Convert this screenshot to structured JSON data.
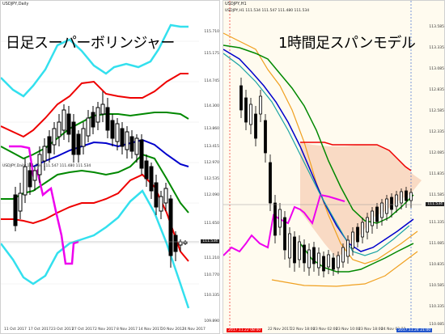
{
  "left": {
    "window_title": "USDJPY,Daily",
    "ohlc_text": "USDJPY,Daily  111.534 111.547 111.480 111.534",
    "caption": "日足スーパーボリンジャー",
    "price_labels": [
      "115.710",
      "115.175",
      "114.745",
      "114.300",
      "113.860",
      "113.415",
      "112.970",
      "112.535",
      "112.090",
      "111.650",
      "111.210",
      "110.770",
      "110.335",
      "109.890"
    ],
    "date_labels": [
      "11 Oct 2017",
      "17 Oct 2017",
      "23 Oct 2017",
      "27 Oct 2017",
      "2 Nov 2017",
      "8 Nov 2017",
      "14 Nov 2017",
      "20 Nov 2017",
      "24 Nov 2017"
    ],
    "current_price": "111.534"
  },
  "right": {
    "window_title": "USDJPY,H1",
    "ohlc_text": "USDJPY,H1  111.534 111.547 111.480 111.534",
    "caption": "1時間足スパンモデル",
    "price_labels": [
      "113.585",
      "113.335",
      "113.085",
      "112.835",
      "112.585",
      "112.335",
      "112.085",
      "111.835",
      "111.585",
      "111.335",
      "111.085",
      "110.835",
      "110.585",
      "110.335",
      "110.085"
    ],
    "date_labels": [
      "22 Nov 2017",
      "22 Nov 18:00",
      "23 Nov 02:00",
      "23 Nov 10:00",
      "23 Nov 18:00",
      "24 Nov 02:00",
      "24 Nov 10:00"
    ],
    "left_marker": "2017.11.22 08:00",
    "right_marker": "2017.11.24 21:00",
    "current_price": "111.534"
  },
  "colors": {
    "bull": "#ffffff",
    "bear": "#000000",
    "cyan": "#33e0ee",
    "red": "#ee0000",
    "green": "#008800",
    "blue": "#0000cc",
    "magenta": "#ee00ee",
    "orange": "#f0a020",
    "span_fill": "#f4c0a0"
  }
}
